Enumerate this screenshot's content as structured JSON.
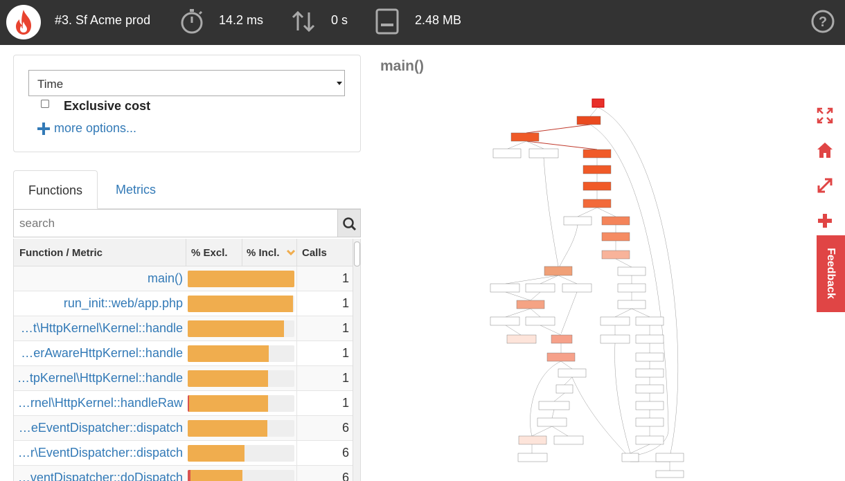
{
  "header": {
    "profile_title": "#3. Sf Acme prod",
    "time": "14.2 ms",
    "io": "0 s",
    "memory": "2.48 MB",
    "icons": [
      "flame-icon",
      "stopwatch-icon",
      "updown-arrows-icon",
      "memory-icon",
      "help-icon"
    ]
  },
  "options": {
    "metric_selected": "Time",
    "exclusive_label": "Exclusive cost",
    "more_options": "more options..."
  },
  "tabs": [
    {
      "label": "Functions",
      "active": true
    },
    {
      "label": "Metrics",
      "active": false
    }
  ],
  "search": {
    "placeholder": "search"
  },
  "table": {
    "headers": {
      "function": "Function / Metric",
      "excl": "% Excl.",
      "incl": "% Incl.",
      "calls": "Calls"
    },
    "rows": [
      {
        "name": "main()",
        "incl": 1.0,
        "excl": 0.0,
        "calls": "1"
      },
      {
        "name": "run_init::web/app.php",
        "incl": 0.985,
        "excl": 0.0,
        "calls": "1"
      },
      {
        "name": "…t\\HttpKernel\\Kernel::handle",
        "incl": 0.9,
        "excl": 0.0,
        "calls": "1"
      },
      {
        "name": "…erAwareHttpKernel::handle",
        "incl": 0.76,
        "excl": 0.0,
        "calls": "1"
      },
      {
        "name": "…tpKernel\\HttpKernel::handle",
        "incl": 0.755,
        "excl": 0.0,
        "calls": "1"
      },
      {
        "name": "…rnel\\HttpKernel::handleRaw",
        "incl": 0.755,
        "excl": 0.01,
        "calls": "1"
      },
      {
        "name": "…eEventDispatcher::dispatch",
        "incl": 0.745,
        "excl": 0.0,
        "calls": "6"
      },
      {
        "name": "…r\\EventDispatcher::dispatch",
        "incl": 0.53,
        "excl": 0.0,
        "calls": "6"
      },
      {
        "name": "…ventDispatcher::doDispatch",
        "incl": 0.51,
        "excl": 0.025,
        "calls": "6"
      }
    ]
  },
  "graph": {
    "title": "main()"
  },
  "right_toolbar": {
    "icons": [
      "fit-screen-icon",
      "home-icon",
      "expand-icon",
      "zoom-in-icon"
    ],
    "feedback": "Feedback"
  }
}
